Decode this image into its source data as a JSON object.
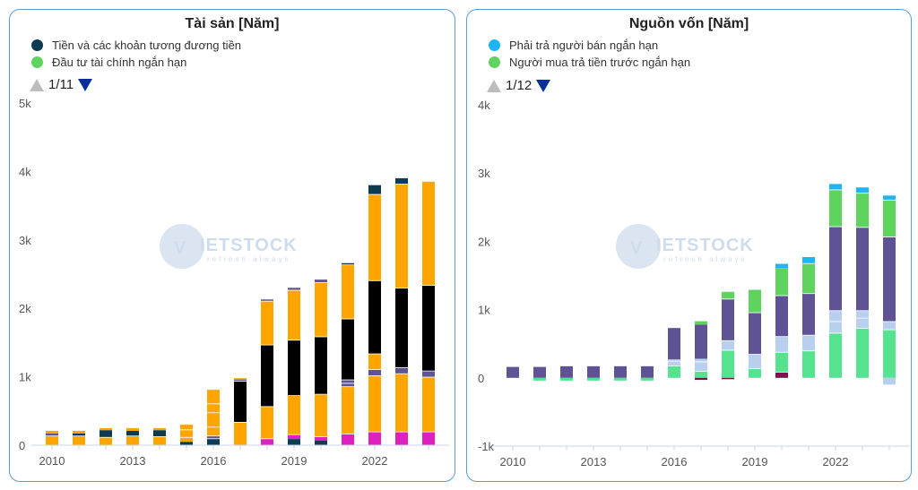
{
  "watermark": {
    "brand": "VIETSTOCK",
    "tagline": "refresh always",
    "prefix": "V"
  },
  "colors": {
    "dark_teal": "#0d3b52",
    "orange": "#ffa500",
    "black": "#000000",
    "magenta": "#e01fc0",
    "purple": "#5f5395",
    "light_blue": "#b8d0ee",
    "green": "#5ed45e",
    "mint": "#55e390",
    "cyan": "#1fb5f5",
    "maroon": "#7a1050",
    "axis_grid": "#c8d4e4"
  },
  "chart_data": [
    {
      "id": "assets",
      "type": "bar",
      "title": "Tài sản [Năm]",
      "legend": [
        {
          "label": "Tiền và các khoản tương đương tiền",
          "color": "#0d3b52"
        },
        {
          "label": "Đầu tư tài chính ngắn hạn",
          "color": "#5ed45e"
        }
      ],
      "pager": "1/11",
      "ylim": [
        0,
        5000
      ],
      "yticks": [
        0,
        1000,
        2000,
        3000,
        4000,
        5000
      ],
      "ytick_labels": [
        "0",
        "1k",
        "2k",
        "3k",
        "4k",
        "5k"
      ],
      "x": [
        2010,
        2011,
        2012,
        2013,
        2014,
        2015,
        2016,
        2017,
        2018,
        2019,
        2020,
        2021,
        2022,
        2023,
        2024
      ],
      "xtick_labels": [
        "2010",
        "2013",
        "2016",
        "2019",
        "2022"
      ],
      "xtick_years": [
        2010,
        2013,
        2016,
        2019,
        2022
      ],
      "segments": [
        [
          [
            "#ffa500",
            130
          ],
          [
            "#ffffff",
            10
          ],
          [
            "#5f5395",
            30
          ],
          [
            "#ffa500",
            40
          ]
        ],
        [
          [
            "#ffa500",
            130
          ],
          [
            "#ffffff",
            10
          ],
          [
            "#0d3b52",
            30
          ],
          [
            "#ffa500",
            40
          ]
        ],
        [
          [
            "#ffa500",
            110
          ],
          [
            "#ffffff",
            10
          ],
          [
            "#0d3b52",
            100
          ],
          [
            "#ffa500",
            30
          ]
        ],
        [
          [
            "#ffa500",
            130
          ],
          [
            "#ffffff",
            10
          ],
          [
            "#0d3b52",
            70
          ],
          [
            "#ffa500",
            40
          ]
        ],
        [
          [
            "#ffa500",
            120
          ],
          [
            "#ffffff",
            10
          ],
          [
            "#0d3b52",
            90
          ],
          [
            "#ffa500",
            30
          ]
        ],
        [
          [
            "#0d3b52",
            50
          ],
          [
            "#ffa500",
            60
          ],
          [
            "#ffffff",
            10
          ],
          [
            "#ffa500",
            100
          ],
          [
            "#ffffff",
            10
          ],
          [
            "#ffa500",
            70
          ]
        ],
        [
          [
            "#0d3b52",
            90
          ],
          [
            "#ffffff",
            10
          ],
          [
            "#5f5395",
            30
          ],
          [
            "#ffffff",
            10
          ],
          [
            "#ffa500",
            120
          ],
          [
            "#ffffff",
            10
          ],
          [
            "#ffa500",
            200
          ],
          [
            "#ffffff",
            10
          ],
          [
            "#ffa500",
            120
          ],
          [
            "#ffffff",
            10
          ],
          [
            "#ffa500",
            200
          ]
        ],
        [
          [
            "#ffa500",
            330
          ],
          [
            "#ffffff",
            10
          ],
          [
            "#000000",
            590
          ],
          [
            "#ffffff",
            10
          ],
          [
            "#5f5395",
            20
          ],
          [
            "#ffa500",
            20
          ]
        ],
        [
          [
            "#e01fc0",
            90
          ],
          [
            "#ffffff",
            10
          ],
          [
            "#ffa500",
            460
          ],
          [
            "#ffffff",
            10
          ],
          [
            "#000000",
            890
          ],
          [
            "#ffffff",
            10
          ],
          [
            "#ffa500",
            630
          ],
          [
            "#ffffff",
            10
          ],
          [
            "#5f5395",
            20
          ]
        ],
        [
          [
            "#0d3b52",
            90
          ],
          [
            "#e01fc0",
            60
          ],
          [
            "#ffffff",
            10
          ],
          [
            "#ffa500",
            560
          ],
          [
            "#ffffff",
            10
          ],
          [
            "#000000",
            800
          ],
          [
            "#ffffff",
            10
          ],
          [
            "#ffa500",
            720
          ],
          [
            "#ffffff",
            10
          ],
          [
            "#5f5395",
            30
          ]
        ],
        [
          [
            "#0d3b52",
            70
          ],
          [
            "#e01fc0",
            50
          ],
          [
            "#ffffff",
            10
          ],
          [
            "#ffa500",
            610
          ],
          [
            "#ffffff",
            10
          ],
          [
            "#000000",
            830
          ],
          [
            "#ffffff",
            10
          ],
          [
            "#ffa500",
            780
          ],
          [
            "#ffffff",
            10
          ],
          [
            "#5f5395",
            40
          ]
        ],
        [
          [
            "#e01fc0",
            160
          ],
          [
            "#ffffff",
            10
          ],
          [
            "#ffa500",
            680
          ],
          [
            "#ffffff",
            10
          ],
          [
            "#5f5395",
            40
          ],
          [
            "#ffffff",
            10
          ],
          [
            "#5f5395",
            40
          ],
          [
            "#ffffff",
            10
          ],
          [
            "#000000",
            880
          ],
          [
            "#ffffff",
            10
          ],
          [
            "#ffa500",
            780
          ],
          [
            "#ffffff",
            10
          ],
          [
            "#0d3b52",
            20
          ]
        ],
        [
          [
            "#e01fc0",
            190
          ],
          [
            "#ffffff",
            10
          ],
          [
            "#ffa500",
            810
          ],
          [
            "#ffffff",
            10
          ],
          [
            "#5f5395",
            80
          ],
          [
            "#ffffff",
            10
          ],
          [
            "#ffa500",
            220
          ],
          [
            "#ffffff",
            10
          ],
          [
            "#000000",
            1060
          ],
          [
            "#ffffff",
            10
          ],
          [
            "#ffa500",
            1250
          ],
          [
            "#ffffff",
            10
          ],
          [
            "#0d3b52",
            130
          ]
        ],
        [
          [
            "#e01fc0",
            190
          ],
          [
            "#ffffff",
            10
          ],
          [
            "#ffa500",
            840
          ],
          [
            "#ffffff",
            10
          ],
          [
            "#5f5395",
            80
          ],
          [
            "#ffffff",
            10
          ],
          [
            "#000000",
            1150
          ],
          [
            "#ffffff",
            10
          ],
          [
            "#ffa500",
            1510
          ],
          [
            "#ffffff",
            10
          ],
          [
            "#0d3b52",
            80
          ]
        ],
        [
          [
            "#e01fc0",
            190
          ],
          [
            "#ffffff",
            10
          ],
          [
            "#ffa500",
            790
          ],
          [
            "#ffffff",
            10
          ],
          [
            "#5f5395",
            80
          ],
          [
            "#ffffff",
            10
          ],
          [
            "#000000",
            1240
          ],
          [
            "#ffffff",
            10
          ],
          [
            "#ffa500",
            1510
          ]
        ]
      ]
    },
    {
      "id": "capital",
      "type": "bar",
      "title": "Nguồn vốn [Năm]",
      "legend": [
        {
          "label": "Phải trả người bán ngắn hạn",
          "color": "#1fb5f5"
        },
        {
          "label": "Người mua trả tiền trước ngắn hạn",
          "color": "#5ed45e"
        }
      ],
      "pager": "1/12",
      "ylim": [
        -1000,
        4000
      ],
      "yticks": [
        -1000,
        0,
        1000,
        2000,
        3000,
        4000
      ],
      "ytick_labels": [
        "-1k",
        "0",
        "1k",
        "2k",
        "3k",
        "4k"
      ],
      "x": [
        2010,
        2011,
        2012,
        2013,
        2014,
        2015,
        2016,
        2017,
        2018,
        2019,
        2020,
        2021,
        2022,
        2023,
        2024
      ],
      "xtick_labels": [
        "2010",
        "2013",
        "2016",
        "2019",
        "2022"
      ],
      "xtick_years": [
        2010,
        2013,
        2016,
        2019,
        2022
      ],
      "pos_segments": [
        [
          [
            "#5f5395",
            160
          ]
        ],
        [
          [
            "#5f5395",
            160
          ]
        ],
        [
          [
            "#5f5395",
            170
          ]
        ],
        [
          [
            "#5f5395",
            170
          ]
        ],
        [
          [
            "#5f5395",
            170
          ]
        ],
        [
          [
            "#5f5395",
            170
          ]
        ],
        [
          [
            "#55e390",
            170
          ],
          [
            "#ffffff",
            10
          ],
          [
            "#b8d0ee",
            60
          ],
          [
            "#ffffff",
            10
          ],
          [
            "#b8d0ee",
            20
          ],
          [
            "#5f5395",
            460
          ]
        ],
        [
          [
            "#55e390",
            90
          ],
          [
            "#ffffff",
            10
          ],
          [
            "#b8d0ee",
            130
          ],
          [
            "#ffffff",
            10
          ],
          [
            "#b8d0ee",
            40
          ],
          [
            "#5f5395",
            500
          ],
          [
            "#5ed45e",
            50
          ]
        ],
        [
          [
            "#55e390",
            400
          ],
          [
            "#ffffff",
            10
          ],
          [
            "#b8d0ee",
            130
          ],
          [
            "#ffffff",
            10
          ],
          [
            "#5f5395",
            600
          ],
          [
            "#ffffff",
            10
          ],
          [
            "#5ed45e",
            100
          ]
        ],
        [
          [
            "#55e390",
            130
          ],
          [
            "#ffffff",
            10
          ],
          [
            "#b8d0ee",
            200
          ],
          [
            "#ffffff",
            10
          ],
          [
            "#5f5395",
            600
          ],
          [
            "#ffffff",
            10
          ],
          [
            "#5ed45e",
            330
          ]
        ],
        [
          [
            "#7a1050",
            80
          ],
          [
            "#ffffff",
            10
          ],
          [
            "#55e390",
            280
          ],
          [
            "#ffffff",
            10
          ],
          [
            "#b8d0ee",
            220
          ],
          [
            "#ffffff",
            10
          ],
          [
            "#5f5395",
            590
          ],
          [
            "#ffffff",
            10
          ],
          [
            "#5ed45e",
            400
          ],
          [
            "#1fb5f5",
            60
          ]
        ],
        [
          [
            "#55e390",
            390
          ],
          [
            "#ffffff",
            10
          ],
          [
            "#b8d0ee",
            220
          ],
          [
            "#ffffff",
            10
          ],
          [
            "#5f5395",
            600
          ],
          [
            "#ffffff",
            10
          ],
          [
            "#5ed45e",
            430
          ],
          [
            "#ffffff",
            10
          ],
          [
            "#1fb5f5",
            90
          ]
        ],
        [
          [
            "#55e390",
            650
          ],
          [
            "#ffffff",
            10
          ],
          [
            "#b8d0ee",
            160
          ],
          [
            "#ffffff",
            10
          ],
          [
            "#b8d0ee",
            150
          ],
          [
            "#ffffff",
            10
          ],
          [
            "#5f5395",
            1220
          ],
          [
            "#ffffff",
            10
          ],
          [
            "#5ed45e",
            530
          ],
          [
            "#ffffff",
            10
          ],
          [
            "#1fb5f5",
            80
          ]
        ],
        [
          [
            "#55e390",
            720
          ],
          [
            "#ffffff",
            10
          ],
          [
            "#b8d0ee",
            140
          ],
          [
            "#ffffff",
            10
          ],
          [
            "#b8d0ee",
            100
          ],
          [
            "#ffffff",
            10
          ],
          [
            "#5f5395",
            1210
          ],
          [
            "#ffffff",
            10
          ],
          [
            "#5ed45e",
            490
          ],
          [
            "#ffffff",
            10
          ],
          [
            "#1fb5f5",
            80
          ]
        ],
        [
          [
            "#55e390",
            700
          ],
          [
            "#ffffff",
            10
          ],
          [
            "#b8d0ee",
            110
          ],
          [
            "#ffffff",
            10
          ],
          [
            "#5f5395",
            1230
          ],
          [
            "#ffffff",
            10
          ],
          [
            "#5ed45e",
            530
          ],
          [
            "#ffffff",
            10
          ],
          [
            "#1fb5f5",
            60
          ]
        ]
      ],
      "neg_segments": [
        [],
        [
          [
            "#55e390",
            40
          ]
        ],
        [
          [
            "#55e390",
            40
          ]
        ],
        [
          [
            "#55e390",
            40
          ]
        ],
        [
          [
            "#55e390",
            40
          ]
        ],
        [
          [
            "#55e390",
            40
          ]
        ],
        [],
        [
          [
            "#7a1050",
            30
          ]
        ],
        [
          [
            "#7a1050",
            20
          ]
        ],
        [],
        [],
        [],
        [],
        [],
        [
          [
            "#b8d0ee",
            100
          ]
        ]
      ]
    }
  ]
}
